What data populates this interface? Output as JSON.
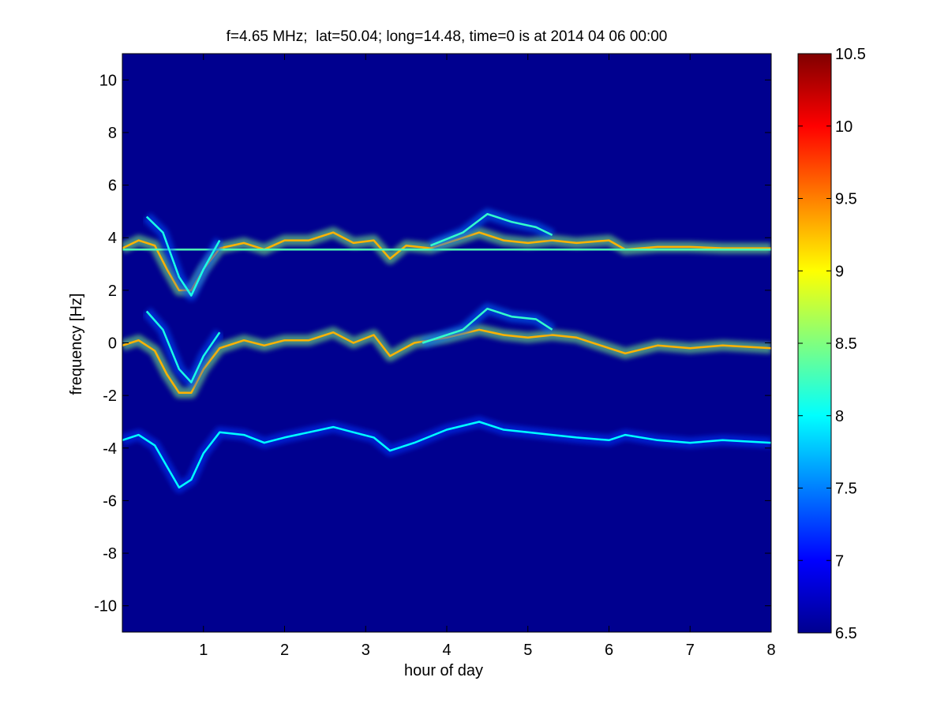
{
  "chart_data": {
    "type": "heatmap",
    "title": "f=4.65 MHz;  lat=50.04; long=14.48, time=0 is at 2014 04 06 00:00",
    "xlabel": "hour of day",
    "ylabel": "frequency [Hz]",
    "xlim": [
      0,
      8
    ],
    "ylim": [
      -11,
      11
    ],
    "xticks": [
      "1",
      "2",
      "3",
      "4",
      "5",
      "6",
      "7",
      "8"
    ],
    "xtick_values": [
      1,
      2,
      3,
      4,
      5,
      6,
      7,
      8
    ],
    "yticks": [
      "10",
      "8",
      "6",
      "4",
      "2",
      "0",
      "-2",
      "-4",
      "-6",
      "-8",
      "-10"
    ],
    "ytick_values": [
      10,
      8,
      6,
      4,
      2,
      0,
      -2,
      -4,
      -6,
      -8,
      -10
    ],
    "colorbar": {
      "colormap": "jet",
      "range": [
        6.5,
        10.5
      ],
      "ticks": [
        "10.5",
        "10",
        "9.5",
        "9",
        "8.5",
        "8",
        "7.5",
        "7",
        "6.5"
      ],
      "tick_values": [
        10.5,
        10,
        9.5,
        9,
        8.5,
        8,
        7.5,
        7,
        6.5
      ]
    },
    "background_color": "#00008f",
    "series": [
      {
        "level": 9.3,
        "points": [
          [
            0,
            3.6
          ],
          [
            0.2,
            3.9
          ],
          [
            0.4,
            3.7
          ],
          [
            0.55,
            2.8
          ],
          [
            0.7,
            2.0
          ],
          [
            0.85,
            2.0
          ],
          [
            1.0,
            2.8
          ],
          [
            1.2,
            3.6
          ],
          [
            1.5,
            3.8
          ],
          [
            1.75,
            3.55
          ],
          [
            2.0,
            3.9
          ],
          [
            2.3,
            3.9
          ],
          [
            2.6,
            4.2
          ],
          [
            2.85,
            3.8
          ],
          [
            3.1,
            3.9
          ],
          [
            3.3,
            3.2
          ],
          [
            3.5,
            3.7
          ],
          [
            3.8,
            3.6
          ],
          [
            4.1,
            3.9
          ],
          [
            4.4,
            4.2
          ],
          [
            4.7,
            3.9
          ],
          [
            5.0,
            3.8
          ],
          [
            5.3,
            3.9
          ],
          [
            5.6,
            3.8
          ],
          [
            6.0,
            3.9
          ],
          [
            6.2,
            3.55
          ],
          [
            6.6,
            3.65
          ],
          [
            7.0,
            3.65
          ],
          [
            7.4,
            3.6
          ],
          [
            8.0,
            3.6
          ]
        ]
      },
      {
        "level": 8.3,
        "points": [
          [
            0,
            3.55
          ],
          [
            8,
            3.55
          ]
        ]
      },
      {
        "level": 9.3,
        "points": [
          [
            0,
            -0.1
          ],
          [
            0.2,
            0.1
          ],
          [
            0.4,
            -0.3
          ],
          [
            0.55,
            -1.2
          ],
          [
            0.7,
            -1.9
          ],
          [
            0.85,
            -1.9
          ],
          [
            1.0,
            -1.0
          ],
          [
            1.2,
            -0.2
          ],
          [
            1.5,
            0.1
          ],
          [
            1.75,
            -0.1
          ],
          [
            2.0,
            0.1
          ],
          [
            2.3,
            0.1
          ],
          [
            2.6,
            0.4
          ],
          [
            2.85,
            0.0
          ],
          [
            3.1,
            0.3
          ],
          [
            3.3,
            -0.5
          ],
          [
            3.6,
            0.0
          ],
          [
            4.0,
            0.2
          ],
          [
            4.4,
            0.5
          ],
          [
            4.7,
            0.3
          ],
          [
            5.0,
            0.2
          ],
          [
            5.3,
            0.3
          ],
          [
            5.6,
            0.2
          ],
          [
            6.0,
            -0.2
          ],
          [
            6.2,
            -0.4
          ],
          [
            6.6,
            -0.1
          ],
          [
            7.0,
            -0.2
          ],
          [
            7.4,
            -0.1
          ],
          [
            8.0,
            -0.2
          ]
        ]
      },
      {
        "level": 8.0,
        "points": [
          [
            0,
            -3.7
          ],
          [
            0.2,
            -3.5
          ],
          [
            0.4,
            -3.9
          ],
          [
            0.55,
            -4.7
          ],
          [
            0.7,
            -5.5
          ],
          [
            0.85,
            -5.2
          ],
          [
            1.0,
            -4.2
          ],
          [
            1.2,
            -3.4
          ],
          [
            1.5,
            -3.5
          ],
          [
            1.75,
            -3.8
          ],
          [
            2.0,
            -3.6
          ],
          [
            2.3,
            -3.4
          ],
          [
            2.6,
            -3.2
          ],
          [
            2.85,
            -3.4
          ],
          [
            3.1,
            -3.6
          ],
          [
            3.3,
            -4.1
          ],
          [
            3.6,
            -3.8
          ],
          [
            4.0,
            -3.3
          ],
          [
            4.4,
            -3.0
          ],
          [
            4.7,
            -3.3
          ],
          [
            5.0,
            -3.4
          ],
          [
            5.3,
            -3.5
          ],
          [
            5.6,
            -3.6
          ],
          [
            6.0,
            -3.7
          ],
          [
            6.2,
            -3.5
          ],
          [
            6.6,
            -3.7
          ],
          [
            7.0,
            -3.8
          ],
          [
            7.4,
            -3.7
          ],
          [
            8.0,
            -3.8
          ]
        ]
      },
      {
        "level": 8.1,
        "points": [
          [
            0.3,
            4.8
          ],
          [
            0.5,
            4.2
          ],
          [
            0.7,
            2.5
          ],
          [
            0.85,
            1.8
          ],
          [
            1.0,
            2.8
          ],
          [
            1.2,
            3.9
          ]
        ]
      },
      {
        "level": 8.1,
        "points": [
          [
            0.3,
            1.2
          ],
          [
            0.5,
            0.5
          ],
          [
            0.7,
            -1.0
          ],
          [
            0.85,
            -1.5
          ],
          [
            1.0,
            -0.5
          ],
          [
            1.2,
            0.4
          ]
        ]
      },
      {
        "level": 8.2,
        "points": [
          [
            3.8,
            3.7
          ],
          [
            4.2,
            4.2
          ],
          [
            4.5,
            4.9
          ],
          [
            4.8,
            4.6
          ],
          [
            5.1,
            4.4
          ],
          [
            5.3,
            4.1
          ]
        ]
      },
      {
        "level": 8.2,
        "points": [
          [
            3.7,
            0.0
          ],
          [
            4.2,
            0.5
          ],
          [
            4.5,
            1.3
          ],
          [
            4.8,
            1.0
          ],
          [
            5.1,
            0.9
          ],
          [
            5.3,
            0.5
          ]
        ]
      }
    ]
  }
}
